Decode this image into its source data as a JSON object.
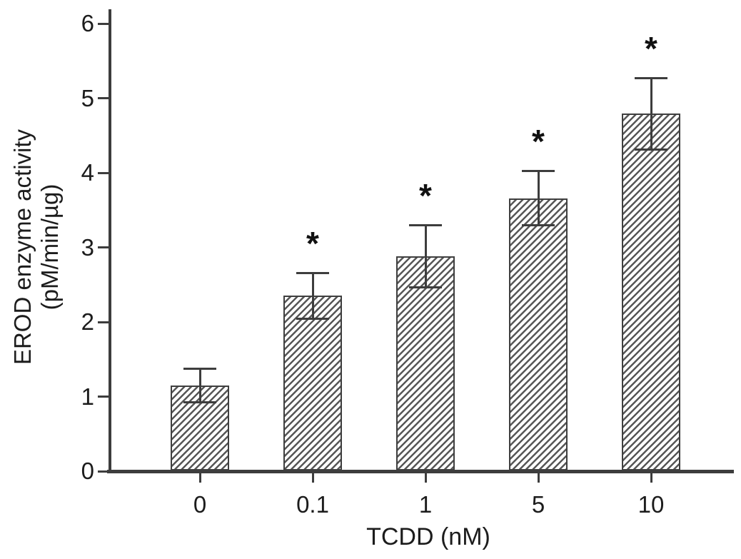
{
  "figure": {
    "background": "#ffffff",
    "axis_color": "#3d3d3d",
    "text_color": "#1c1c1c",
    "bar_fill": "#ffffff",
    "hatch_color": "#565656",
    "significance_marker": "*"
  },
  "chart_data": {
    "type": "bar",
    "title": "",
    "xlabel": "TCDD (nM)",
    "ylabel": "EROD enzyme activity (pM/min/µg)",
    "ylabel_line1": "EROD enzyme activity",
    "ylabel_line2": "(pM/min/µg)",
    "categories": [
      "0",
      "0.1",
      "1",
      "5",
      "10"
    ],
    "values": [
      1.15,
      2.35,
      2.88,
      3.66,
      4.79
    ],
    "errors": [
      0.23,
      0.31,
      0.42,
      0.37,
      0.48
    ],
    "significant": [
      false,
      true,
      true,
      true,
      true
    ],
    "ylim": [
      0,
      6
    ],
    "yticks": [
      0,
      1,
      2,
      3,
      4,
      5,
      6
    ],
    "grid": false,
    "legend_position": "none",
    "bar_hatch": "diagonal-forward",
    "error_bar_style": "caps-both-ends"
  }
}
